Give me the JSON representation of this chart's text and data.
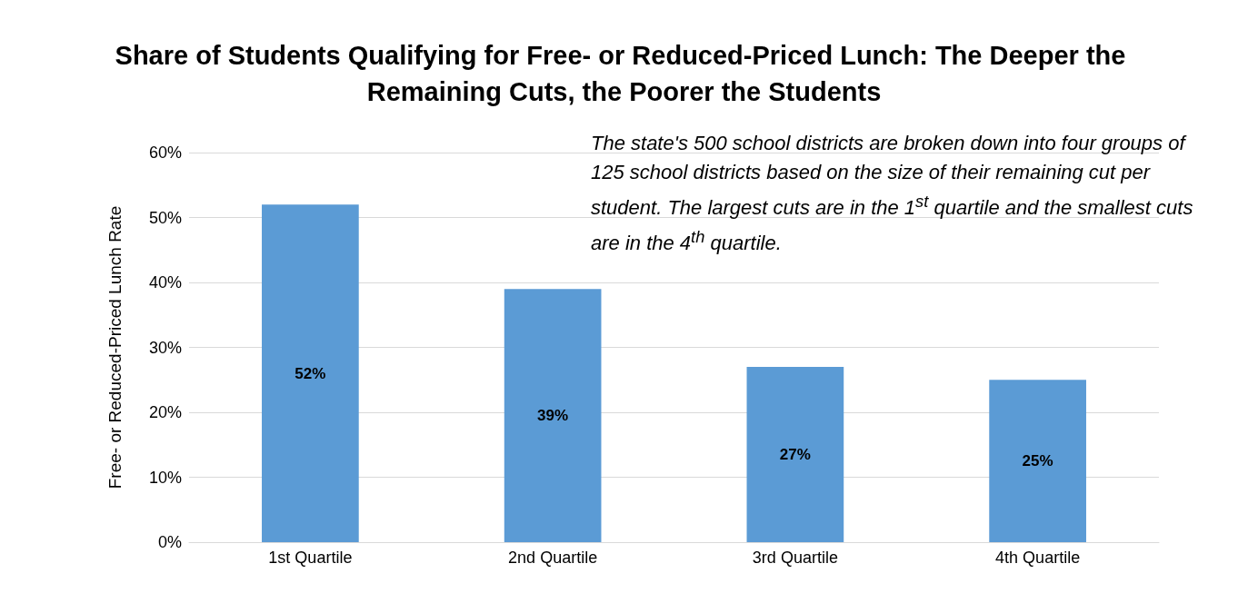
{
  "chart_data": {
    "type": "bar",
    "title": "Share of Students Qualifying for Free- or Reduced-Priced Lunch: The Deeper the Remaining Cuts, the Poorer the Students",
    "ylabel": "Free- or Reduced-Priced Lunch Rate",
    "categories": [
      "1st Quartile",
      "2nd Quartile",
      "3rd Quartile",
      "4th Quartile"
    ],
    "values": [
      52,
      39,
      27,
      25
    ],
    "value_labels": [
      "52%",
      "39%",
      "27%",
      "25%"
    ],
    "color": "#5b9bd5",
    "ylim": [
      0,
      60
    ],
    "yticks": [
      {
        "value": 0,
        "label": "0%"
      },
      {
        "value": 10,
        "label": "10%"
      },
      {
        "value": 20,
        "label": "20%"
      },
      {
        "value": 30,
        "label": "30%"
      },
      {
        "value": 40,
        "label": "40%"
      },
      {
        "value": 50,
        "label": "50%"
      },
      {
        "value": 60,
        "label": "60%"
      }
    ],
    "grid": "y",
    "annotations": [
      "The state's 500 school districts are broken down into four groups of 125 school districts based on the size of their remaining cut per student.  The largest cuts are in the 1$^{st}$ quartile and the smallest cuts are in the 4$^{th}$ quartile."
    ]
  }
}
